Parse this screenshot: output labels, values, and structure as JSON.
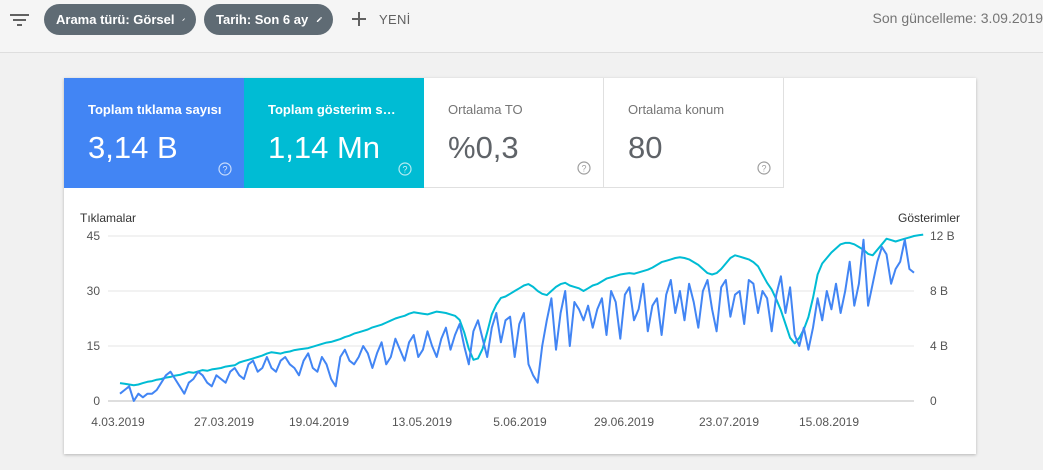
{
  "toolbar": {
    "filter_icon": "filter-list-icon",
    "chips": [
      {
        "label": "Arama türü: Görsel",
        "icon": "edit-icon"
      },
      {
        "label": "Tarih: Son 6 ay",
        "icon": "edit-icon"
      }
    ],
    "new_label": "YENİ",
    "last_update": "Son güncelleme: 3.09.2019"
  },
  "metrics": [
    {
      "label": "Toplam tıklama sayısı",
      "value": "3,14 B",
      "color": "#4285f4"
    },
    {
      "label": "Toplam gösterim sayısı",
      "value": "1,14 Mn",
      "color": "#00bcd4"
    },
    {
      "label": "Ortalama TO",
      "value": "%0,3",
      "color": "#ffffff"
    },
    {
      "label": "Ortalama konum",
      "value": "80",
      "color": "#ffffff"
    }
  ],
  "chart_data": {
    "type": "line",
    "left_axis_title": "Tıklamalar",
    "right_axis_title": "Gösterimler",
    "y_left": {
      "ticks": [
        "0",
        "15",
        "30",
        "45"
      ],
      "range": [
        0,
        45
      ]
    },
    "y_right": {
      "ticks": [
        "0",
        "4 B",
        "8 B",
        "12 B"
      ],
      "range": [
        0,
        12
      ]
    },
    "x_ticks": [
      "4.03.2019",
      "27.03.2019",
      "19.04.2019",
      "13.05.2019",
      "5.06.2019",
      "29.06.2019",
      "23.07.2019",
      "15.08.2019"
    ],
    "grid": true,
    "series": [
      {
        "name": "Tıklamalar",
        "color": "#4285f4",
        "axis": "left",
        "values": [
          2,
          3,
          4,
          0,
          2,
          1,
          2,
          2,
          3,
          5,
          7,
          8,
          6,
          4,
          2,
          5,
          6,
          8,
          7,
          5,
          4,
          7,
          6,
          5,
          8,
          9,
          7,
          6,
          10,
          11,
          8,
          9,
          12,
          9,
          8,
          11,
          12,
          10,
          9,
          7,
          11,
          13,
          9,
          8,
          12,
          10,
          6,
          4,
          12,
          14,
          11,
          10,
          12,
          15,
          13,
          9,
          13,
          16,
          10,
          12,
          17,
          14,
          11,
          16,
          18,
          12,
          14,
          19,
          15,
          12,
          17,
          20,
          14,
          18,
          21,
          15,
          10,
          19,
          22,
          17,
          12,
          20,
          24,
          16,
          22,
          23,
          12,
          21,
          24,
          10,
          7,
          5,
          15,
          22,
          28,
          14,
          24,
          30,
          15,
          27,
          25,
          22,
          26,
          20,
          25,
          28,
          18,
          30,
          27,
          17,
          29,
          31,
          22,
          25,
          32,
          19,
          26,
          28,
          18,
          29,
          33,
          24,
          30,
          22,
          32,
          27,
          20,
          30,
          33,
          25,
          19,
          31,
          33,
          23,
          29,
          30,
          21,
          33,
          32,
          24,
          30,
          28,
          19,
          29,
          34,
          24,
          31,
          18,
          15,
          20,
          14,
          20,
          28,
          22,
          30,
          25,
          32,
          24,
          30,
          38,
          26,
          32,
          44,
          26,
          32,
          38,
          42,
          40,
          32,
          36,
          38,
          44,
          36,
          35
        ]
      },
      {
        "name": "Gösterimler",
        "color": "#00bcd4",
        "axis": "right",
        "values": [
          1.3,
          1.25,
          1.2,
          1.15,
          1.2,
          1.3,
          1.4,
          1.45,
          1.55,
          1.6,
          1.7,
          1.75,
          1.85,
          1.9,
          2.0,
          2.1,
          2.05,
          2.15,
          2.25,
          2.2,
          2.3,
          2.35,
          2.4,
          2.5,
          2.55,
          2.6,
          2.8,
          2.9,
          3.0,
          3.1,
          3.2,
          3.3,
          3.45,
          3.55,
          3.5,
          3.45,
          3.55,
          3.6,
          3.7,
          3.75,
          3.8,
          3.85,
          3.95,
          4.05,
          4.15,
          4.25,
          4.3,
          4.4,
          4.5,
          4.65,
          4.75,
          4.9,
          5.0,
          5.1,
          5.2,
          5.35,
          5.45,
          5.55,
          5.7,
          5.85,
          6.0,
          6.1,
          6.2,
          6.35,
          6.45,
          6.4,
          6.35,
          6.3,
          6.4,
          6.5,
          6.45,
          6.4,
          6.3,
          6.2,
          5.9,
          5.0,
          3.8,
          3.0,
          3.1,
          3.8,
          5.0,
          6.3,
          7.0,
          7.5,
          7.6,
          7.8,
          8.0,
          8.2,
          8.4,
          8.5,
          8.3,
          8.0,
          7.8,
          7.7,
          8.0,
          8.3,
          8.5,
          8.6,
          8.4,
          8.3,
          8.2,
          8.0,
          8.2,
          8.4,
          8.5,
          8.7,
          8.9,
          9.0,
          9.1,
          9.2,
          9.25,
          9.3,
          9.25,
          9.35,
          9.45,
          9.55,
          9.7,
          9.9,
          10.1,
          10.2,
          10.3,
          10.4,
          10.45,
          10.4,
          10.3,
          10.1,
          9.9,
          9.6,
          9.3,
          9.2,
          9.3,
          9.6,
          10.0,
          10.4,
          10.6,
          10.5,
          10.4,
          10.3,
          10.1,
          9.8,
          9.2,
          8.6,
          8.1,
          7.4,
          6.6,
          5.6,
          4.6,
          4.2,
          4.6,
          5.2,
          6.1,
          7.5,
          9.2,
          10.0,
          10.4,
          10.8,
          11.1,
          11.4,
          11.5,
          11.5,
          11.4,
          11.2,
          11.0,
          10.7,
          10.6,
          11.0,
          11.4,
          11.8,
          11.7,
          11.6,
          11.7,
          11.8,
          11.9,
          12.0,
          12.05,
          12.1
        ]
      }
    ]
  }
}
